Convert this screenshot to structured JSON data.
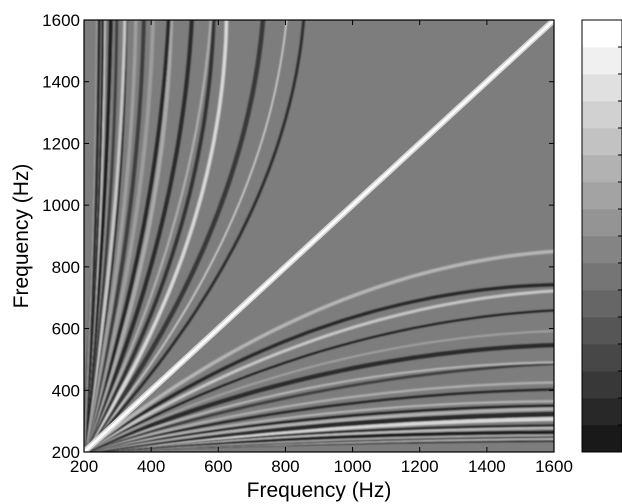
{
  "chart_data": {
    "type": "heatmap",
    "title": "",
    "xlabel": "Frequency (Hz)",
    "ylabel": "Frequency (Hz)",
    "xlim": [
      200,
      1600
    ],
    "ylim": [
      200,
      1600
    ],
    "x_ticks": [
      "200",
      "400",
      "600",
      "800",
      "1000",
      "1200",
      "1400",
      "1600"
    ],
    "y_ticks": [
      "200",
      "400",
      "600",
      "800",
      "1000",
      "1200",
      "1400",
      "1600"
    ],
    "x_tick_values": [
      200,
      400,
      600,
      800,
      1000,
      1200,
      1400,
      1600
    ],
    "y_tick_values": [
      200,
      400,
      600,
      800,
      1000,
      1200,
      1400,
      1600
    ],
    "colormap": "gray",
    "colorbar_levels": 16,
    "colorbar_tick_labels": [],
    "grid": false,
    "features": {
      "diagonal_ridge": "bright line along y = x from (200,200) to (1600,1600)",
      "fan_curves": "dark and light curved bands radiating from the origin corner (200,200)"
    }
  }
}
